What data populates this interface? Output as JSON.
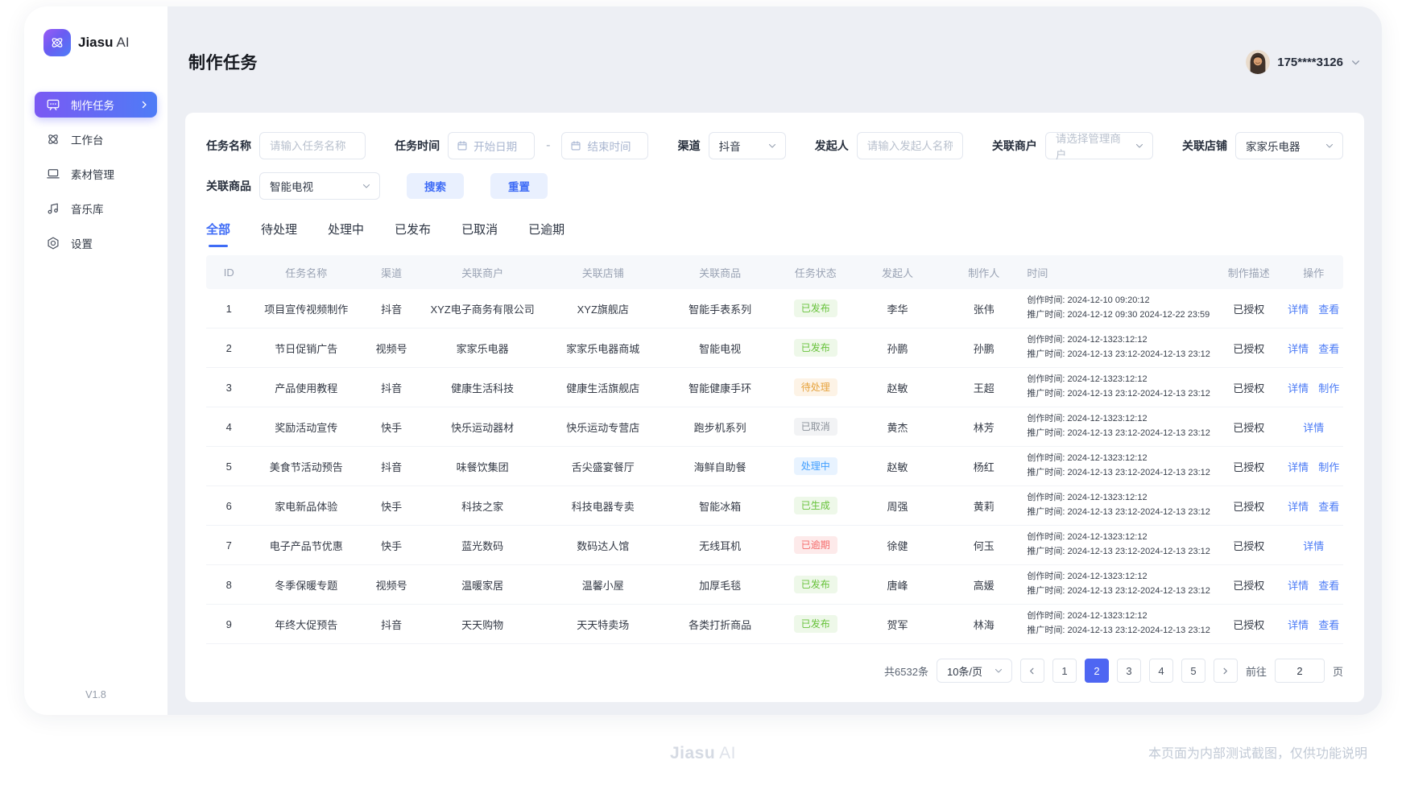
{
  "app": {
    "brand": "Jiasu",
    "brand_suffix": "AI",
    "version": "V1.8"
  },
  "sidebar": {
    "items": [
      {
        "key": "tasks",
        "label": "制作任务",
        "icon": "screen-icon",
        "active": true
      },
      {
        "key": "workbench",
        "label": "工作台",
        "icon": "atom-icon",
        "active": false
      },
      {
        "key": "materials",
        "label": "素材管理",
        "icon": "laptop-icon",
        "active": false
      },
      {
        "key": "music",
        "label": "音乐库",
        "icon": "music-icon",
        "active": false
      },
      {
        "key": "settings",
        "label": "设置",
        "icon": "gear-icon",
        "active": false
      }
    ]
  },
  "header": {
    "title": "制作任务",
    "user_name": "175****3126"
  },
  "filters": {
    "task_name": {
      "label": "任务名称",
      "placeholder": "请输入任务名称"
    },
    "task_time": {
      "label": "任务时间",
      "start_placeholder": "开始日期",
      "end_placeholder": "结束时间",
      "separator": "-"
    },
    "channel": {
      "label": "渠道",
      "value": "抖音"
    },
    "initiator": {
      "label": "发起人",
      "placeholder": "请输入发起人名称"
    },
    "merchant": {
      "label": "关联商户",
      "placeholder": "请选择管理商户"
    },
    "shop": {
      "label": "关联店铺",
      "value": "家家乐电器"
    },
    "product": {
      "label": "关联商品",
      "value": "智能电视"
    },
    "search_label": "搜索",
    "reset_label": "重置"
  },
  "tabs": [
    {
      "key": "all",
      "label": "全部",
      "active": true
    },
    {
      "key": "pending",
      "label": "待处理",
      "active": false
    },
    {
      "key": "processing",
      "label": "处理中",
      "active": false
    },
    {
      "key": "published",
      "label": "已发布",
      "active": false
    },
    {
      "key": "cancelled",
      "label": "已取消",
      "active": false
    },
    {
      "key": "overdue",
      "label": "已逾期",
      "active": false
    }
  ],
  "table": {
    "headers": [
      "ID",
      "任务名称",
      "渠道",
      "关联商户",
      "关联店铺",
      "关联商品",
      "任务状态",
      "发起人",
      "制作人",
      "时间",
      "制作描述",
      "操作"
    ],
    "rows": [
      {
        "id": "1",
        "name": "项目宣传视频制作",
        "channel": "抖音",
        "merchant": "XYZ电子商务有限公司",
        "shop": "XYZ旗舰店",
        "product": "智能手表系列",
        "status": "已发布",
        "status_type": "success",
        "initiator": "李华",
        "maker": "张伟",
        "time_lines": [
          "创作时间: 2024-12-10 09:20:12",
          "推广时间: 2024-12-12 09:30 2024-12-22 23:59"
        ],
        "desc": "已授权",
        "actions": [
          "详情",
          "查看"
        ]
      },
      {
        "id": "2",
        "name": "节日促销广告",
        "channel": "视频号",
        "merchant": "家家乐电器",
        "shop": "家家乐电器商城",
        "product": "智能电视",
        "status": "已发布",
        "status_type": "success",
        "initiator": "孙鹏",
        "maker": "孙鹏",
        "time_lines": [
          "创作时间: 2024-12-1323:12:12",
          "推广时间: 2024-12-13 23:12-2024-12-13 23:12"
        ],
        "desc": "已授权",
        "actions": [
          "详情",
          "查看"
        ]
      },
      {
        "id": "3",
        "name": "产品使用教程",
        "channel": "抖音",
        "merchant": "健康生活科技",
        "shop": "健康生活旗舰店",
        "product": "智能健康手环",
        "status": "待处理",
        "status_type": "warning",
        "initiator": "赵敏",
        "maker": "王超",
        "time_lines": [
          "创作时间: 2024-12-1323:12:12",
          "推广时间: 2024-12-13 23:12-2024-12-13 23:12"
        ],
        "desc": "已授权",
        "actions": [
          "详情",
          "制作"
        ]
      },
      {
        "id": "4",
        "name": "奖励活动宣传",
        "channel": "快手",
        "merchant": "快乐运动器材",
        "shop": "快乐运动专营店",
        "product": "跑步机系列",
        "status": "已取消",
        "status_type": "info",
        "initiator": "黄杰",
        "maker": "林芳",
        "time_lines": [
          "创作时间: 2024-12-1323:12:12",
          "推广时间: 2024-12-13 23:12-2024-12-13 23:12"
        ],
        "desc": "已授权",
        "actions": [
          "详情"
        ]
      },
      {
        "id": "5",
        "name": "美食节活动预告",
        "channel": "抖音",
        "merchant": "味餐饮集团",
        "shop": "舌尖盛宴餐厅",
        "product": "海鲜自助餐",
        "status": "处理中",
        "status_type": "processing",
        "initiator": "赵敏",
        "maker": "杨红",
        "time_lines": [
          "创作时间: 2024-12-1323:12:12",
          "推广时间: 2024-12-13 23:12-2024-12-13 23:12"
        ],
        "desc": "已授权",
        "actions": [
          "详情",
          "制作"
        ]
      },
      {
        "id": "6",
        "name": "家电新品体验",
        "channel": "快手",
        "merchant": "科技之家",
        "shop": "科技电器专卖",
        "product": "智能冰箱",
        "status": "已生成",
        "status_type": "success",
        "initiator": "周强",
        "maker": "黄莉",
        "time_lines": [
          "创作时间: 2024-12-1323:12:12",
          "推广时间: 2024-12-13 23:12-2024-12-13 23:12"
        ],
        "desc": "已授权",
        "actions": [
          "详情",
          "查看"
        ]
      },
      {
        "id": "7",
        "name": "电子产品节优惠",
        "channel": "快手",
        "merchant": "蓝光数码",
        "shop": "数码达人馆",
        "product": "无线耳机",
        "status": "已逾期",
        "status_type": "danger",
        "initiator": "徐健",
        "maker": "何玉",
        "time_lines": [
          "创作时间: 2024-12-1323:12:12",
          "推广时间: 2024-12-13 23:12-2024-12-13 23:12"
        ],
        "desc": "已授权",
        "actions": [
          "详情"
        ]
      },
      {
        "id": "8",
        "name": "冬季保暖专题",
        "channel": "视频号",
        "merchant": "温暖家居",
        "shop": "温馨小屋",
        "product": "加厚毛毯",
        "status": "已发布",
        "status_type": "success",
        "initiator": "唐峰",
        "maker": "高媛",
        "time_lines": [
          "创作时间: 2024-12-1323:12:12",
          "推广时间: 2024-12-13 23:12-2024-12-13 23:12"
        ],
        "desc": "已授权",
        "actions": [
          "详情",
          "查看"
        ]
      },
      {
        "id": "9",
        "name": "年终大促预告",
        "channel": "抖音",
        "merchant": "天天购物",
        "shop": "天天特卖场",
        "product": "各类打折商品",
        "status": "已发布",
        "status_type": "success",
        "initiator": "贺军",
        "maker": "林海",
        "time_lines": [
          "创作时间: 2024-12-1323:12:12",
          "推广时间: 2024-12-13 23:12-2024-12-13 23:12"
        ],
        "desc": "已授权",
        "actions": [
          "详情",
          "查看"
        ]
      }
    ]
  },
  "pagination": {
    "total": "共6532条",
    "page_size": "10条/页",
    "pages": [
      "1",
      "2",
      "3",
      "4",
      "5"
    ],
    "current": "2",
    "goto_label": "前往",
    "goto_value": "2",
    "unit_label": "页"
  },
  "footer": {
    "brand": "Jiasu",
    "brand_suffix": "AI",
    "note": "本页面为内部测试截图，仅供功能说明"
  },
  "colors": {
    "accent": "#3f6cf6",
    "active_gradient_start": "#7a59f3",
    "active_gradient_end": "#4e7cf6",
    "success": "#67c23a",
    "warning": "#e6a23c",
    "danger": "#f56c6c",
    "processing": "#409eff",
    "cancelled": "#8a9099",
    "current_page_bg": "#4e66f2"
  }
}
